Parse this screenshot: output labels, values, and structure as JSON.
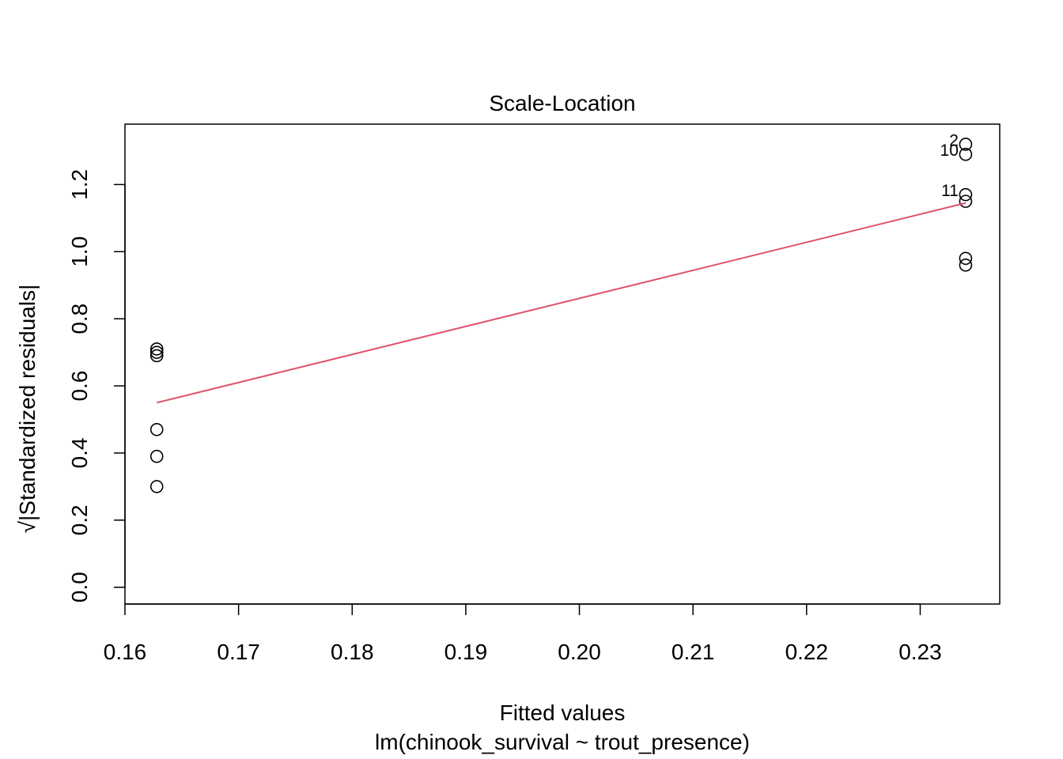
{
  "chart_data": {
    "type": "scatter",
    "title": "Scale-Location",
    "xlabel": "Fitted values",
    "subtitle": "lm(chinook_survival ~ trout_presence)",
    "ylabel": "√|Standardized residuals|",
    "xlim": [
      0.16,
      0.237
    ],
    "ylim": [
      -0.05,
      1.38
    ],
    "x_ticks": [
      "0.16",
      "0.17",
      "0.18",
      "0.19",
      "0.20",
      "0.21",
      "0.22",
      "0.23"
    ],
    "y_ticks": [
      "0.0",
      "0.2",
      "0.4",
      "0.6",
      "0.8",
      "1.0",
      "1.2"
    ],
    "grid": false,
    "legend": "none",
    "points": [
      {
        "x": 0.1628,
        "y": 0.71
      },
      {
        "x": 0.1628,
        "y": 0.7
      },
      {
        "x": 0.1628,
        "y": 0.69
      },
      {
        "x": 0.1628,
        "y": 0.47
      },
      {
        "x": 0.1628,
        "y": 0.39
      },
      {
        "x": 0.1628,
        "y": 0.3
      },
      {
        "x": 0.234,
        "y": 1.32,
        "label": "2"
      },
      {
        "x": 0.234,
        "y": 1.29,
        "label": "10"
      },
      {
        "x": 0.234,
        "y": 1.17,
        "label": "11"
      },
      {
        "x": 0.234,
        "y": 1.15
      },
      {
        "x": 0.234,
        "y": 0.98
      },
      {
        "x": 0.234,
        "y": 0.96
      }
    ],
    "smoother": {
      "color": "#DF536B",
      "x": [
        0.1628,
        0.234
      ],
      "y": [
        0.55,
        1.145
      ]
    }
  }
}
